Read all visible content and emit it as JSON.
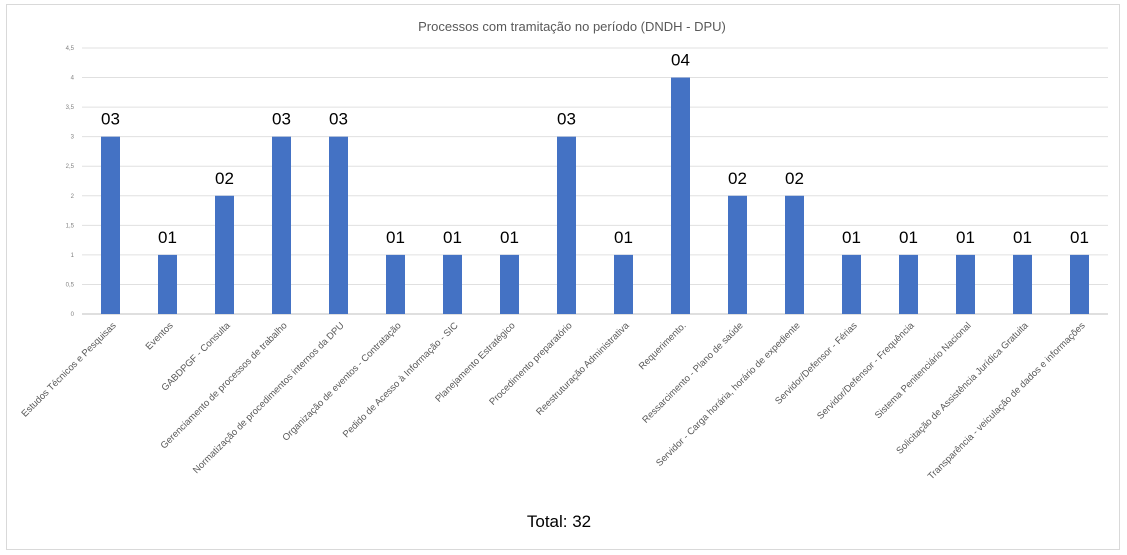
{
  "chart_data": {
    "type": "bar",
    "title": "Processos com tramitação no período (DNDH - DPU)",
    "categories": [
      "Estudos Técnicos e Pesquisas",
      "Eventos",
      "GABDPGF - Consulta",
      "Gerenciamento de processos de trabalho",
      "Normatização de procedimentos internos da DPU",
      "Organização de eventos - Contratação",
      "Pedido de Acesso à Informação - SIC",
      "Planejamento Estratégico",
      "Procedimento preparatório",
      "Reestruturação Administrativa",
      "Requerimento.",
      "Ressarcimento - Plano de saúde",
      "Servidor - Carga horária, horário de expediente",
      "Servidor/Defensor - Férias",
      "Servidor/Defensor - Frequência",
      "Sistema Penitenciário Nacional",
      "Solicitação de Assistência Jurídica Gratuita",
      "Transparência - veiculação de dados e informações"
    ],
    "values": [
      3,
      1,
      2,
      3,
      3,
      1,
      1,
      1,
      3,
      1,
      4,
      2,
      2,
      1,
      1,
      1,
      1,
      1
    ],
    "data_labels": [
      "03",
      "01",
      "02",
      "03",
      "03",
      "01",
      "01",
      "01",
      "03",
      "01",
      "04",
      "02",
      "02",
      "01",
      "01",
      "01",
      "01",
      "01"
    ],
    "y_ticks": [
      "0",
      "0,5",
      "1",
      "1,5",
      "2",
      "2,5",
      "3",
      "3,5",
      "4",
      "4,5"
    ],
    "ylim": [
      0,
      4.5
    ],
    "grid": true,
    "bar_color": "#4472c4",
    "xlabel": "",
    "ylabel": "",
    "legend": "none"
  },
  "footer": {
    "total_label": "Total: 32"
  }
}
